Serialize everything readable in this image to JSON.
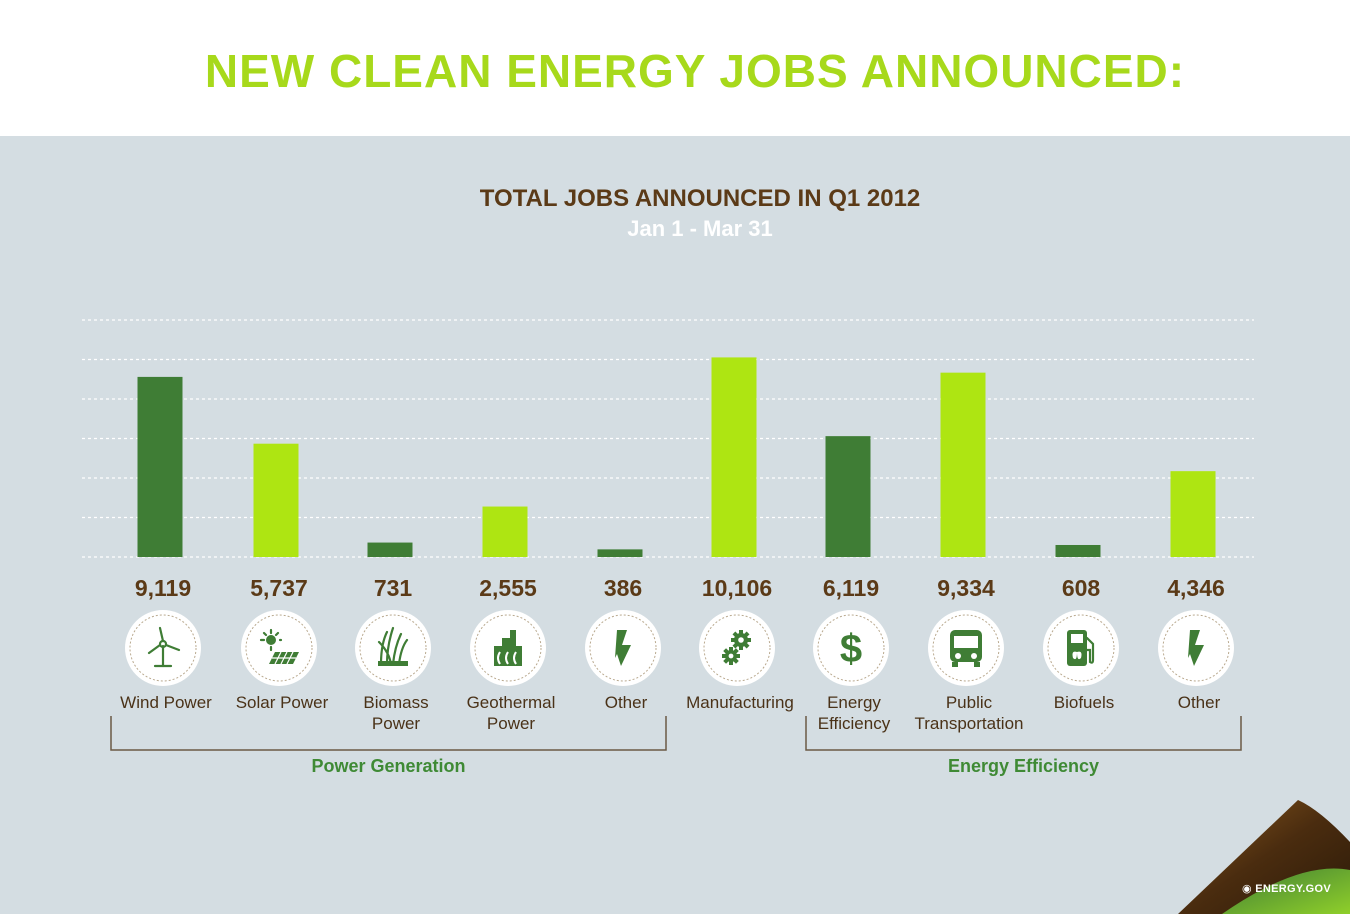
{
  "page": {
    "heading": "NEW CLEAN ENERGY JOBS ANNOUNCED:",
    "brand": "ENERGY.GOV"
  },
  "colors": {
    "heading": "#a7d91b",
    "chart_title": "#5b3a17",
    "subtitle": "#ffffff",
    "panel_background": "#d4dde2",
    "dark_green": "#3f7d35",
    "light_green": "#aee512",
    "value_label": "#5b3a17",
    "category_label": "#4a3218",
    "group_label": "#3f8a35",
    "gridline": "#ffffff"
  },
  "chart_data": {
    "type": "bar",
    "title": "TOTAL JOBS ANNOUNCED IN Q1 2012",
    "subtitle": "Jan 1 - Mar 31",
    "ylim": [
      0,
      12000
    ],
    "grid": true,
    "categories": [
      "Wind Power",
      "Solar Power",
      "Biomass Power",
      "Geothermal Power",
      "Other",
      "Manufacturing",
      "Energy Efficiency",
      "Public Transportation",
      "Biofuels",
      "Other"
    ],
    "category_lines": [
      [
        "Wind Power"
      ],
      [
        "Solar Power"
      ],
      [
        "Biomass",
        "Power"
      ],
      [
        "Geothermal",
        "Power"
      ],
      [
        "Other"
      ],
      [
        "Manufacturing"
      ],
      [
        "Energy",
        "Efficiency"
      ],
      [
        "Public",
        "Transportation"
      ],
      [
        "Biofuels"
      ],
      [
        "Other"
      ]
    ],
    "values": [
      9119,
      5737,
      731,
      2555,
      386,
      10106,
      6119,
      9334,
      608,
      4346
    ],
    "value_labels": [
      "9,119",
      "5,737",
      "731",
      "2,555",
      "386",
      "10,106",
      "6,119",
      "9,334",
      "608",
      "4,346"
    ],
    "bar_shades": [
      "dark",
      "light",
      "dark",
      "light",
      "dark",
      "light",
      "dark",
      "light",
      "dark",
      "light"
    ],
    "icons": [
      "wind-turbine-icon",
      "solar-panel-icon",
      "grass-icon",
      "geothermal-plant-icon",
      "lightning-bolt-icon",
      "gears-icon",
      "dollar-icon",
      "bus-icon",
      "fuel-pump-icon",
      "lightning-bolt-icon"
    ],
    "groups": [
      {
        "label": "Power Generation",
        "from": 0,
        "to": 4
      },
      {
        "label": "Energy Efficiency",
        "from": 6,
        "to": 9
      }
    ]
  }
}
